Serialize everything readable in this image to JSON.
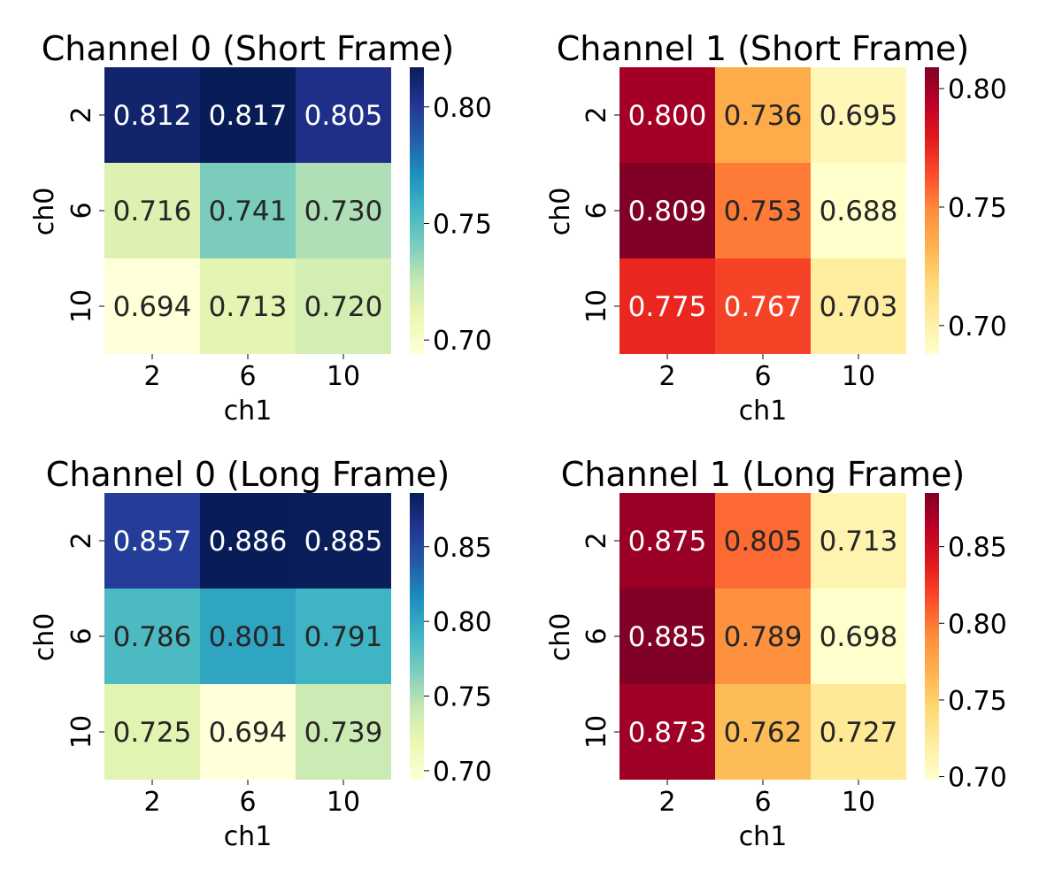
{
  "chart_data": [
    {
      "type": "heatmap",
      "title": "Channel 0 (Short Frame)",
      "xlabel": "ch1",
      "ylabel": "ch0",
      "x": [
        "2",
        "6",
        "10"
      ],
      "y": [
        "2",
        "6",
        "10"
      ],
      "values": [
        [
          0.812,
          0.817,
          0.805
        ],
        [
          0.716,
          0.741,
          0.73
        ],
        [
          0.694,
          0.713,
          0.72
        ]
      ],
      "colormap": "YlGnBu",
      "vmin": 0.694,
      "vmax": 0.817,
      "colorbar_ticks": [
        "0.70",
        "0.75",
        "0.80"
      ],
      "colorbar_tick_values": [
        0.7,
        0.75,
        0.8
      ]
    },
    {
      "type": "heatmap",
      "title": "Channel 1 (Short Frame)",
      "xlabel": "ch1",
      "ylabel": "ch0",
      "x": [
        "2",
        "6",
        "10"
      ],
      "y": [
        "2",
        "6",
        "10"
      ],
      "values": [
        [
          0.8,
          0.736,
          0.695
        ],
        [
          0.809,
          0.753,
          0.688
        ],
        [
          0.775,
          0.767,
          0.703
        ]
      ],
      "colormap": "YlOrRd",
      "vmin": 0.688,
      "vmax": 0.809,
      "colorbar_ticks": [
        "0.70",
        "0.75",
        "0.80"
      ],
      "colorbar_tick_values": [
        0.7,
        0.75,
        0.8
      ]
    },
    {
      "type": "heatmap",
      "title": "Channel 0 (Long Frame)",
      "xlabel": "ch1",
      "ylabel": "ch0",
      "x": [
        "2",
        "6",
        "10"
      ],
      "y": [
        "2",
        "6",
        "10"
      ],
      "values": [
        [
          0.857,
          0.886,
          0.885
        ],
        [
          0.786,
          0.801,
          0.791
        ],
        [
          0.725,
          0.694,
          0.739
        ]
      ],
      "colormap": "YlGnBu",
      "vmin": 0.694,
      "vmax": 0.886,
      "colorbar_ticks": [
        "0.70",
        "0.75",
        "0.80",
        "0.85"
      ],
      "colorbar_tick_values": [
        0.7,
        0.75,
        0.8,
        0.85
      ]
    },
    {
      "type": "heatmap",
      "title": "Channel 1 (Long Frame)",
      "xlabel": "ch1",
      "ylabel": "ch0",
      "x": [
        "2",
        "6",
        "10"
      ],
      "y": [
        "2",
        "6",
        "10"
      ],
      "values": [
        [
          0.875,
          0.805,
          0.713
        ],
        [
          0.885,
          0.789,
          0.698
        ],
        [
          0.873,
          0.762,
          0.727
        ]
      ],
      "colormap": "YlOrRd",
      "vmin": 0.698,
      "vmax": 0.885,
      "colorbar_ticks": [
        "0.70",
        "0.75",
        "0.80",
        "0.85"
      ],
      "colorbar_tick_values": [
        0.7,
        0.75,
        0.8,
        0.85
      ]
    }
  ],
  "colormaps": {
    "YlGnBu": [
      "#ffffd9",
      "#edf8b1",
      "#c7e9b4",
      "#7fcdbb",
      "#41b6c4",
      "#1d91c0",
      "#225ea8",
      "#253494",
      "#081d58"
    ],
    "YlOrRd": [
      "#ffffcc",
      "#ffeda0",
      "#fed976",
      "#feb24c",
      "#fd8d3c",
      "#fc4e2a",
      "#e31a1c",
      "#bd0026",
      "#800026"
    ]
  },
  "text_colors": {
    "dark": "#262626",
    "light": "#ffffff"
  }
}
